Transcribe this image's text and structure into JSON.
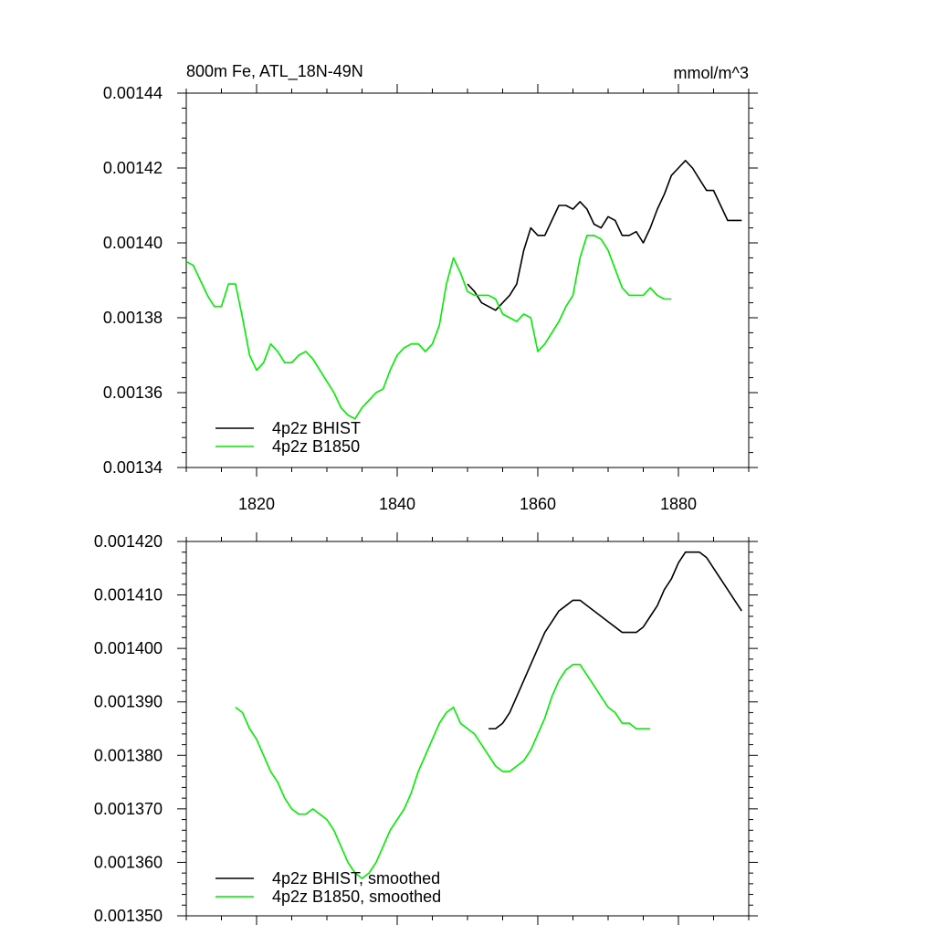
{
  "chart_data": [
    {
      "type": "line",
      "title": "800m Fe, ATL_18N-49N",
      "units": "mmol/m^3",
      "xlabel": "",
      "ylabel": "",
      "xlim": [
        1810,
        1890
      ],
      "ylim": [
        0.00134,
        0.00144
      ],
      "xticks": [
        1820,
        1840,
        1860,
        1880
      ],
      "xtick_labels": [
        "1820",
        "1840",
        "1860",
        "1880"
      ],
      "yticks": [
        0.00134,
        0.00136,
        0.00138,
        0.0014,
        0.00142,
        0.00144
      ],
      "ytick_labels": [
        "0.00134",
        "0.00136",
        "0.00138",
        "0.00140",
        "0.00142",
        "0.00144"
      ],
      "legend_position": "bottom-left",
      "series": [
        {
          "name": "4p2z BHIST",
          "color": "#000000",
          "x": [
            1850,
            1851,
            1852,
            1853,
            1854,
            1855,
            1856,
            1857,
            1858,
            1859,
            1860,
            1861,
            1862,
            1863,
            1864,
            1865,
            1866,
            1867,
            1868,
            1869,
            1870,
            1871,
            1872,
            1873,
            1874,
            1875,
            1876,
            1877,
            1878,
            1879,
            1880,
            1881,
            1882,
            1883,
            1884,
            1885,
            1886,
            1887,
            1888,
            1889
          ],
          "y": [
            0.001389,
            0.001387,
            0.001384,
            0.001383,
            0.001382,
            0.001384,
            0.001386,
            0.001389,
            0.001398,
            0.001404,
            0.001402,
            0.001402,
            0.001406,
            0.00141,
            0.00141,
            0.001409,
            0.001411,
            0.001409,
            0.001405,
            0.001404,
            0.001407,
            0.001406,
            0.001402,
            0.001402,
            0.001403,
            0.0014,
            0.001404,
            0.001409,
            0.001413,
            0.001418,
            0.00142,
            0.001422,
            0.00142,
            0.001417,
            0.001414,
            0.001414,
            0.00141,
            0.001406,
            0.001406,
            0.001406
          ]
        },
        {
          "name": "4p2z B1850",
          "color": "#00ee00",
          "x": [
            1810,
            1811,
            1812,
            1813,
            1814,
            1815,
            1816,
            1817,
            1818,
            1819,
            1820,
            1821,
            1822,
            1823,
            1824,
            1825,
            1826,
            1827,
            1828,
            1829,
            1830,
            1831,
            1832,
            1833,
            1834,
            1835,
            1836,
            1837,
            1838,
            1839,
            1840,
            1841,
            1842,
            1843,
            1844,
            1845,
            1846,
            1847,
            1848,
            1849,
            1850,
            1851,
            1852,
            1853,
            1854,
            1855,
            1856,
            1857,
            1858,
            1859,
            1860,
            1861,
            1862,
            1863,
            1864,
            1865,
            1866,
            1867,
            1868,
            1869,
            1870,
            1871,
            1872,
            1873,
            1874,
            1875,
            1876,
            1877,
            1878,
            1879
          ],
          "y": [
            0.001395,
            0.001394,
            0.00139,
            0.001386,
            0.001383,
            0.001383,
            0.001389,
            0.001389,
            0.00138,
            0.00137,
            0.001366,
            0.001368,
            0.001373,
            0.001371,
            0.001368,
            0.001368,
            0.00137,
            0.001371,
            0.001369,
            0.001366,
            0.001363,
            0.00136,
            0.001356,
            0.001354,
            0.001353,
            0.001356,
            0.001358,
            0.00136,
            0.001361,
            0.001366,
            0.00137,
            0.001372,
            0.001373,
            0.001373,
            0.001371,
            0.001373,
            0.001378,
            0.001389,
            0.001396,
            0.001392,
            0.001387,
            0.001386,
            0.001386,
            0.001386,
            0.001385,
            0.001381,
            0.00138,
            0.001379,
            0.001381,
            0.00138,
            0.001371,
            0.001373,
            0.001376,
            0.001379,
            0.001383,
            0.001386,
            0.001396,
            0.001402,
            0.001402,
            0.001401,
            0.001398,
            0.001393,
            0.001388,
            0.001386,
            0.001386,
            0.001386,
            0.001388,
            0.001386,
            0.001385,
            0.001385
          ]
        }
      ]
    },
    {
      "type": "line",
      "title": "",
      "xlabel": "",
      "ylabel": "",
      "xlim": [
        1810,
        1890
      ],
      "ylim": [
        0.00135,
        0.00142
      ],
      "xticks": [
        1820,
        1840,
        1860,
        1880
      ],
      "yticks": [
        0.00135,
        0.00136,
        0.00137,
        0.00138,
        0.00139,
        0.0014,
        0.00141,
        0.00142
      ],
      "ytick_labels": [
        "0.001350",
        "0.001360",
        "0.001370",
        "0.001380",
        "0.001390",
        "0.001400",
        "0.001410",
        "0.001420"
      ],
      "legend_position": "bottom-left",
      "series": [
        {
          "name": "4p2z BHIST, smoothed",
          "color": "#000000",
          "x": [
            1853,
            1854,
            1855,
            1856,
            1857,
            1858,
            1859,
            1860,
            1861,
            1862,
            1863,
            1864,
            1865,
            1866,
            1867,
            1868,
            1869,
            1870,
            1871,
            1872,
            1873,
            1874,
            1875,
            1876,
            1877,
            1878,
            1879,
            1880,
            1881,
            1882,
            1883,
            1884,
            1885,
            1886,
            1887,
            1888,
            1889
          ],
          "y": [
            0.001385,
            0.001385,
            0.001386,
            0.001388,
            0.001391,
            0.001394,
            0.001397,
            0.0014,
            0.001403,
            0.001405,
            0.001407,
            0.001408,
            0.001409,
            0.001409,
            0.001408,
            0.001407,
            0.001406,
            0.001405,
            0.001404,
            0.001403,
            0.001403,
            0.001403,
            0.001404,
            0.001406,
            0.001408,
            0.001411,
            0.001413,
            0.001416,
            0.001418,
            0.001418,
            0.001418,
            0.001417,
            0.001415,
            0.001413,
            0.001411,
            0.001409,
            0.001407
          ]
        },
        {
          "name": "4p2z B1850, smoothed",
          "color": "#00ee00",
          "x": [
            1817,
            1818,
            1819,
            1820,
            1821,
            1822,
            1823,
            1824,
            1825,
            1826,
            1827,
            1828,
            1829,
            1830,
            1831,
            1832,
            1833,
            1834,
            1835,
            1836,
            1837,
            1838,
            1839,
            1840,
            1841,
            1842,
            1843,
            1844,
            1845,
            1846,
            1847,
            1848,
            1849,
            1850,
            1851,
            1852,
            1853,
            1854,
            1855,
            1856,
            1857,
            1858,
            1859,
            1860,
            1861,
            1862,
            1863,
            1864,
            1865,
            1866,
            1867,
            1868,
            1869,
            1870,
            1871,
            1872,
            1873,
            1874,
            1875,
            1876
          ],
          "y": [
            0.001389,
            0.001388,
            0.001385,
            0.001383,
            0.00138,
            0.001377,
            0.001375,
            0.001372,
            0.00137,
            0.001369,
            0.001369,
            0.00137,
            0.001369,
            0.001368,
            0.001366,
            0.001363,
            0.00136,
            0.001358,
            0.001357,
            0.001358,
            0.00136,
            0.001363,
            0.001366,
            0.001368,
            0.00137,
            0.001373,
            0.001377,
            0.00138,
            0.001383,
            0.001386,
            0.001388,
            0.001389,
            0.001386,
            0.001385,
            0.001384,
            0.001382,
            0.00138,
            0.001378,
            0.001377,
            0.001377,
            0.001378,
            0.001379,
            0.001381,
            0.001384,
            0.001387,
            0.001391,
            0.001394,
            0.001396,
            0.001397,
            0.001397,
            0.001395,
            0.001393,
            0.001391,
            0.001389,
            0.001388,
            0.001386,
            0.001386,
            0.001385,
            0.001385,
            0.001385
          ]
        }
      ]
    }
  ]
}
